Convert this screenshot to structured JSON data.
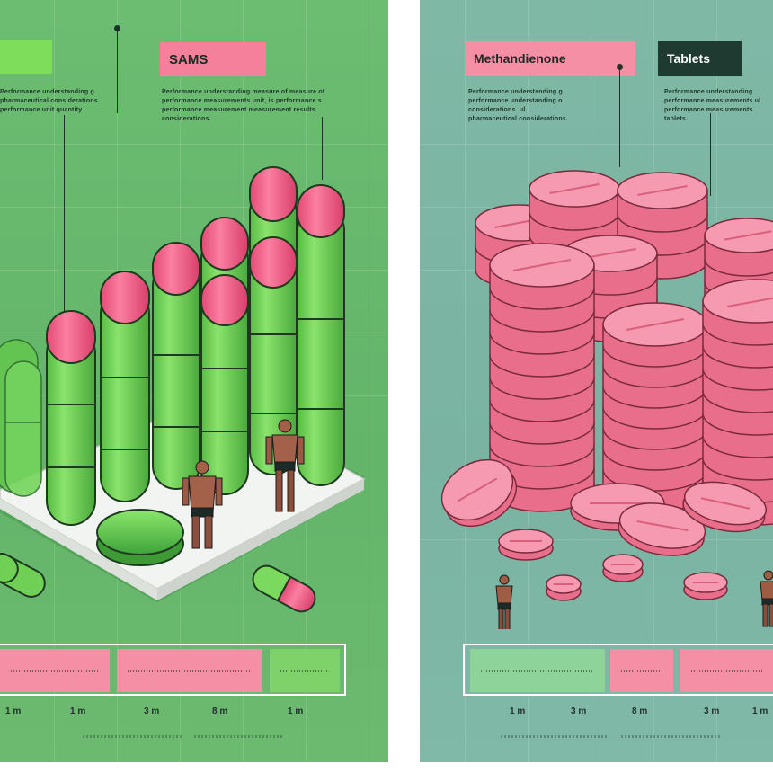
{
  "left_panel": {
    "labels": {
      "top_left": "",
      "sams": "SAMS"
    },
    "fine_print": {
      "block_a": [
        "Performance understanding g",
        "pharmaceutical considerations o",
        "performance unit quantity"
      ],
      "block_b": [
        "Performance understanding measure of measure of",
        "performance measurements unit, is performance s",
        "performance measurement measurement results",
        "considerations."
      ]
    },
    "axis_labels": [
      "1 m",
      "1 m",
      "3 m",
      "8 m",
      "1 m"
    ],
    "legend_colors": [
      "#f58fa6",
      "#f58fa6",
      "#7fd26a"
    ],
    "colors": {
      "capsule_green": "#6fd055",
      "capsule_pink": "#ef5f86",
      "background": "#66b86c"
    }
  },
  "right_panel": {
    "labels": {
      "methandienone": "Methandienone",
      "tablets": "Tablets"
    },
    "fine_print": {
      "block_a": [
        "Performance understanding g",
        "performance understanding o",
        "considerations. ul.",
        "pharmaceutical considerations."
      ],
      "block_b": [
        "Performance understanding",
        "performance measurements ul",
        "performance measurements",
        "tablets."
      ]
    },
    "axis_labels": [
      "1 m",
      "3 m",
      "8 m",
      "3 m",
      "1 m"
    ],
    "legend_colors": [
      "#8ed49a",
      "#f58fa6",
      "#f58fa6"
    ],
    "colors": {
      "tablet_pink": "#f48aa2",
      "background": "#7db6a5"
    }
  }
}
